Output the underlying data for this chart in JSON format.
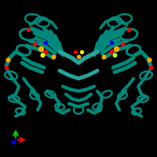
{
  "background_color": "#000000",
  "fig_size": [
    2.0,
    2.0
  ],
  "dpi": 100,
  "protein_color": "#00897B",
  "protein_color_light": "#26A69A",
  "ligand_colors": {
    "red": "#FF0000",
    "orange": "#FFA500",
    "yellow": "#FFFF00",
    "blue": "#0000FF",
    "yellow_green": "#ADFF2F"
  },
  "axis_x_color": "#FF0000",
  "axis_y_color": "#00CC00",
  "axis_z_color": "#0000FF"
}
